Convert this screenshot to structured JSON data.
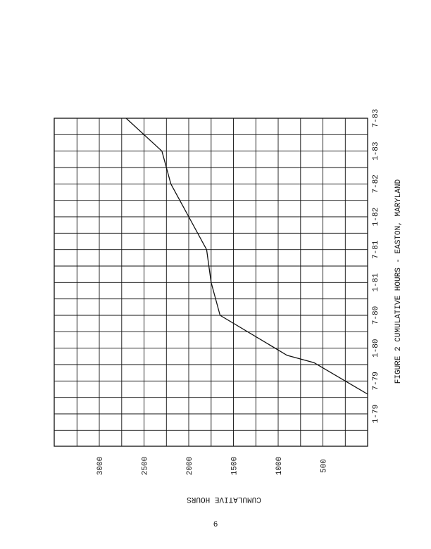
{
  "chart_data": {
    "type": "line",
    "title": "",
    "caption": "FIGURE 2  CUMULATIVE HOURS - EASTON, MARYLAND",
    "xlabel": "",
    "ylabel": "CUMULATIVE HOURS",
    "x_ticks": [
      "1-79",
      "7-79",
      "1-80",
      "7-80",
      "1-81",
      "7-81",
      "1-82",
      "7-82",
      "1-83",
      "7-83"
    ],
    "y_ticks": [
      500,
      1000,
      1500,
      2000,
      2500,
      3000
    ],
    "ylim": [
      0,
      3500
    ],
    "grid": true,
    "series": [
      {
        "values": [
          {
            "x": "7-79",
            "y": 0
          },
          {
            "x": "1-80",
            "y": 600
          },
          {
            "x": "1-80",
            "y": 900
          },
          {
            "x": "7-80",
            "y": 1650
          },
          {
            "x": "1-81",
            "y": 1750
          },
          {
            "x": "7-81",
            "y": 1800
          },
          {
            "x": "1-82",
            "y": 2000
          },
          {
            "x": "7-82",
            "y": 2200
          },
          {
            "x": "1-83",
            "y": 2300
          },
          {
            "x": "7-83",
            "y": 2700
          }
        ]
      }
    ]
  },
  "page_number": "6"
}
